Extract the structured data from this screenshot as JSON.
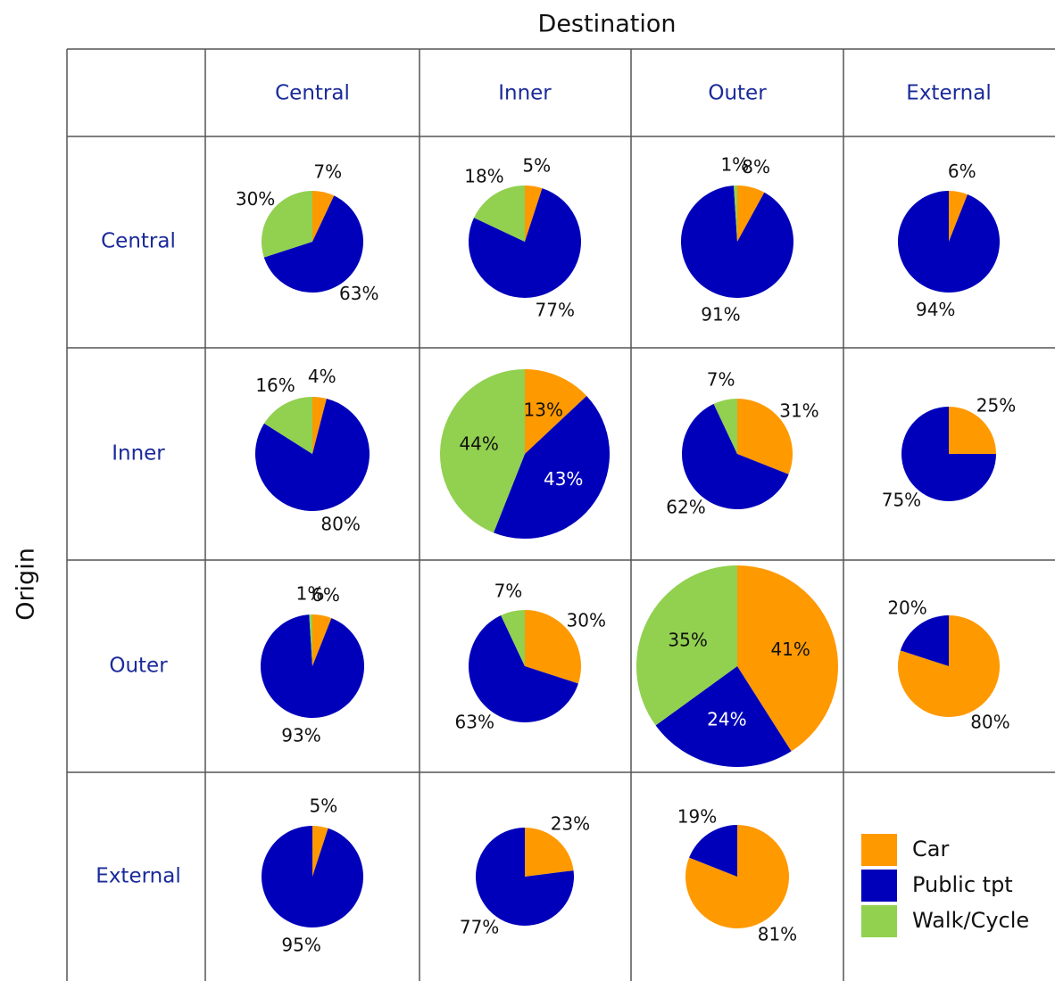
{
  "title": "Destination",
  "y_label": "Origin",
  "columns": [
    "Central",
    "Inner",
    "Outer",
    "External"
  ],
  "rows": [
    "Central",
    "Inner",
    "Outer",
    "External"
  ],
  "legend": [
    {
      "name": "Car",
      "color": "#ff9900"
    },
    {
      "name": "Public tpt",
      "color": "#0000bb"
    },
    {
      "name": "Walk/Cycle",
      "color": "#92d050"
    }
  ],
  "chart_data": [
    {
      "type": "pie",
      "values": [
        7,
        63,
        30
      ],
      "value_labels": [
        "7%",
        "63%",
        "30%"
      ],
      "size": 57
    },
    {
      "type": "pie",
      "values": [
        5,
        77,
        18
      ],
      "value_labels": [
        "5%",
        "77%",
        "18%"
      ],
      "size": 63
    },
    {
      "type": "pie",
      "values": [
        8,
        91,
        1
      ],
      "value_labels": [
        "8%",
        "91%",
        "1%"
      ],
      "size": 63
    },
    {
      "type": "pie",
      "values": [
        6,
        94,
        null
      ],
      "value_labels": [
        "6%",
        "94%",
        null
      ],
      "size": 57
    },
    {
      "type": "pie",
      "values": [
        4,
        80,
        16
      ],
      "value_labels": [
        "4%",
        "80%",
        "16%"
      ],
      "size": 64
    },
    {
      "type": "pie",
      "values": [
        13,
        43,
        44
      ],
      "value_labels": [
        "13%",
        "43%",
        "44%"
      ],
      "size": 95
    },
    {
      "type": "pie",
      "values": [
        31,
        62,
        7
      ],
      "value_labels": [
        "31%",
        "62%",
        "7%"
      ],
      "size": 62
    },
    {
      "type": "pie",
      "values": [
        25,
        75,
        null
      ],
      "value_labels": [
        "25%",
        "75%",
        null
      ],
      "size": 53
    },
    {
      "type": "pie",
      "values": [
        6,
        93,
        1
      ],
      "value_labels": [
        "6%",
        "93%",
        "1%"
      ],
      "size": 58
    },
    {
      "type": "pie",
      "values": [
        30,
        63,
        7
      ],
      "value_labels": [
        "30%",
        "63%",
        "7%"
      ],
      "size": 63
    },
    {
      "type": "pie",
      "values": [
        41,
        24,
        35
      ],
      "value_labels": [
        "41%",
        "24%",
        "35%"
      ],
      "size": 113
    },
    {
      "type": "pie",
      "values": [
        80,
        20,
        null
      ],
      "value_labels": [
        "80%",
        "20%",
        null
      ],
      "size": 57
    },
    {
      "type": "pie",
      "values": [
        5,
        95,
        null
      ],
      "value_labels": [
        "5%",
        "95%",
        null
      ],
      "size": 57
    },
    {
      "type": "pie",
      "values": [
        23,
        77,
        null
      ],
      "value_labels": [
        "23%",
        "77%",
        null
      ],
      "size": 55
    },
    {
      "type": "pie",
      "values": [
        81,
        19,
        null
      ],
      "value_labels": [
        "81%",
        "19%",
        null
      ],
      "size": 58
    }
  ]
}
